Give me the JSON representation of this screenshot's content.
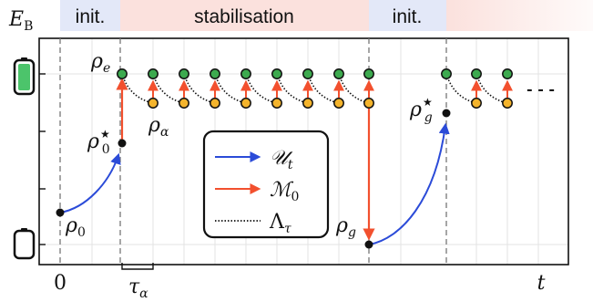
{
  "phase_bands": [
    {
      "label": "init.",
      "color": "#e3e8f8"
    },
    {
      "label": "stabilisation",
      "color": "#fbe1dd"
    },
    {
      "label": "init.",
      "color": "#e3e8f8"
    },
    {
      "label": "",
      "color": "#fbe1dd"
    }
  ],
  "axes": {
    "y_label": "E",
    "y_label_sub": "B",
    "x_label": "t",
    "x_zero": "0",
    "tau": "τ",
    "tau_sub": "α"
  },
  "states": {
    "rho_0": {
      "base": "ρ",
      "sub": "0"
    },
    "rho_0_star": {
      "base": "ρ",
      "sub": "0",
      "sup": "★"
    },
    "rho_e": {
      "base": "ρ",
      "sub": "e"
    },
    "rho_alpha": {
      "base": "ρ",
      "sub": "α"
    },
    "rho_g": {
      "base": "ρ",
      "sub": "g"
    },
    "rho_g_star": {
      "base": "ρ",
      "sub": "g",
      "sup": "★"
    }
  },
  "legend": {
    "unitary": {
      "symbol": "𝒰",
      "sub": "t",
      "color": "#2b4bd8"
    },
    "measurement": {
      "symbol": "ℳ",
      "sub": "0",
      "color": "#f2502e"
    },
    "channel": {
      "symbol": "Λ",
      "sub": "τ",
      "color": "#111111"
    }
  },
  "continuation": "- - -",
  "colors": {
    "excited_dot": "#3daa4f",
    "ground_dot": "#f4b42c",
    "battery_fill": "#4cc46b",
    "point": "#111111"
  }
}
